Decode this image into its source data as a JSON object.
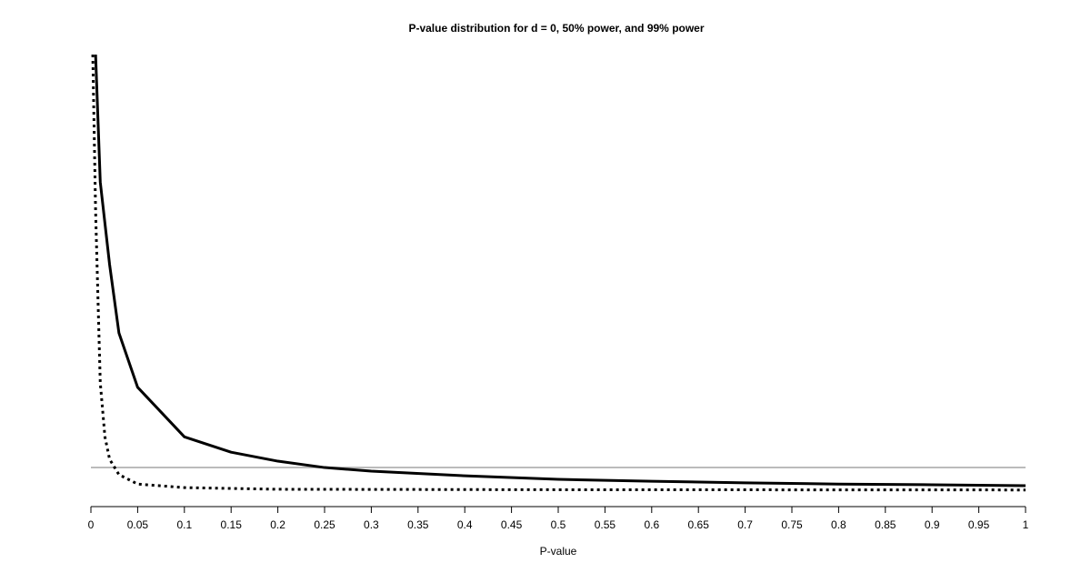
{
  "chart_data": {
    "type": "line",
    "title": "P-value distribution for d = 0, 50% power, and 99% power",
    "x_label": "P-value",
    "xlim": [
      0,
      1
    ],
    "xticks": [
      0,
      0.05,
      0.1,
      0.15,
      0.2,
      0.25,
      0.3,
      0.35,
      0.4,
      0.45,
      0.5,
      0.55,
      0.6,
      0.65,
      0.7,
      0.75,
      0.8,
      0.85,
      0.9,
      0.95,
      1
    ],
    "ylim": [
      0,
      18.5
    ],
    "series": [
      {
        "color": "#bbbbbb",
        "style": "solid",
        "width": 2,
        "x": [
          0,
          1
        ],
        "values": [
          1,
          1
        ]
      },
      {
        "color": "#000000",
        "style": "solid",
        "width": 3,
        "x": [
          0.005,
          0.01,
          0.02,
          0.03,
          0.05,
          0.1,
          0.15,
          0.2,
          0.25,
          0.3,
          0.4,
          0.5,
          0.6,
          0.7,
          0.8,
          0.9,
          1
        ],
        "values": [
          18.5,
          13.1,
          9.6,
          6.7,
          4.4,
          2.3,
          1.65,
          1.27,
          1.0,
          0.85,
          0.65,
          0.5,
          0.42,
          0.35,
          0.3,
          0.27,
          0.23
        ]
      },
      {
        "color": "#000000",
        "style": "dotted",
        "width": 3,
        "x": [
          0.002,
          0.005,
          0.01,
          0.015,
          0.02,
          0.03,
          0.05,
          0.1,
          0.2,
          0.5,
          1
        ],
        "values": [
          18.5,
          11.9,
          4.6,
          2.3,
          1.35,
          0.7,
          0.3,
          0.15,
          0.08,
          0.06,
          0.05
        ]
      }
    ]
  }
}
